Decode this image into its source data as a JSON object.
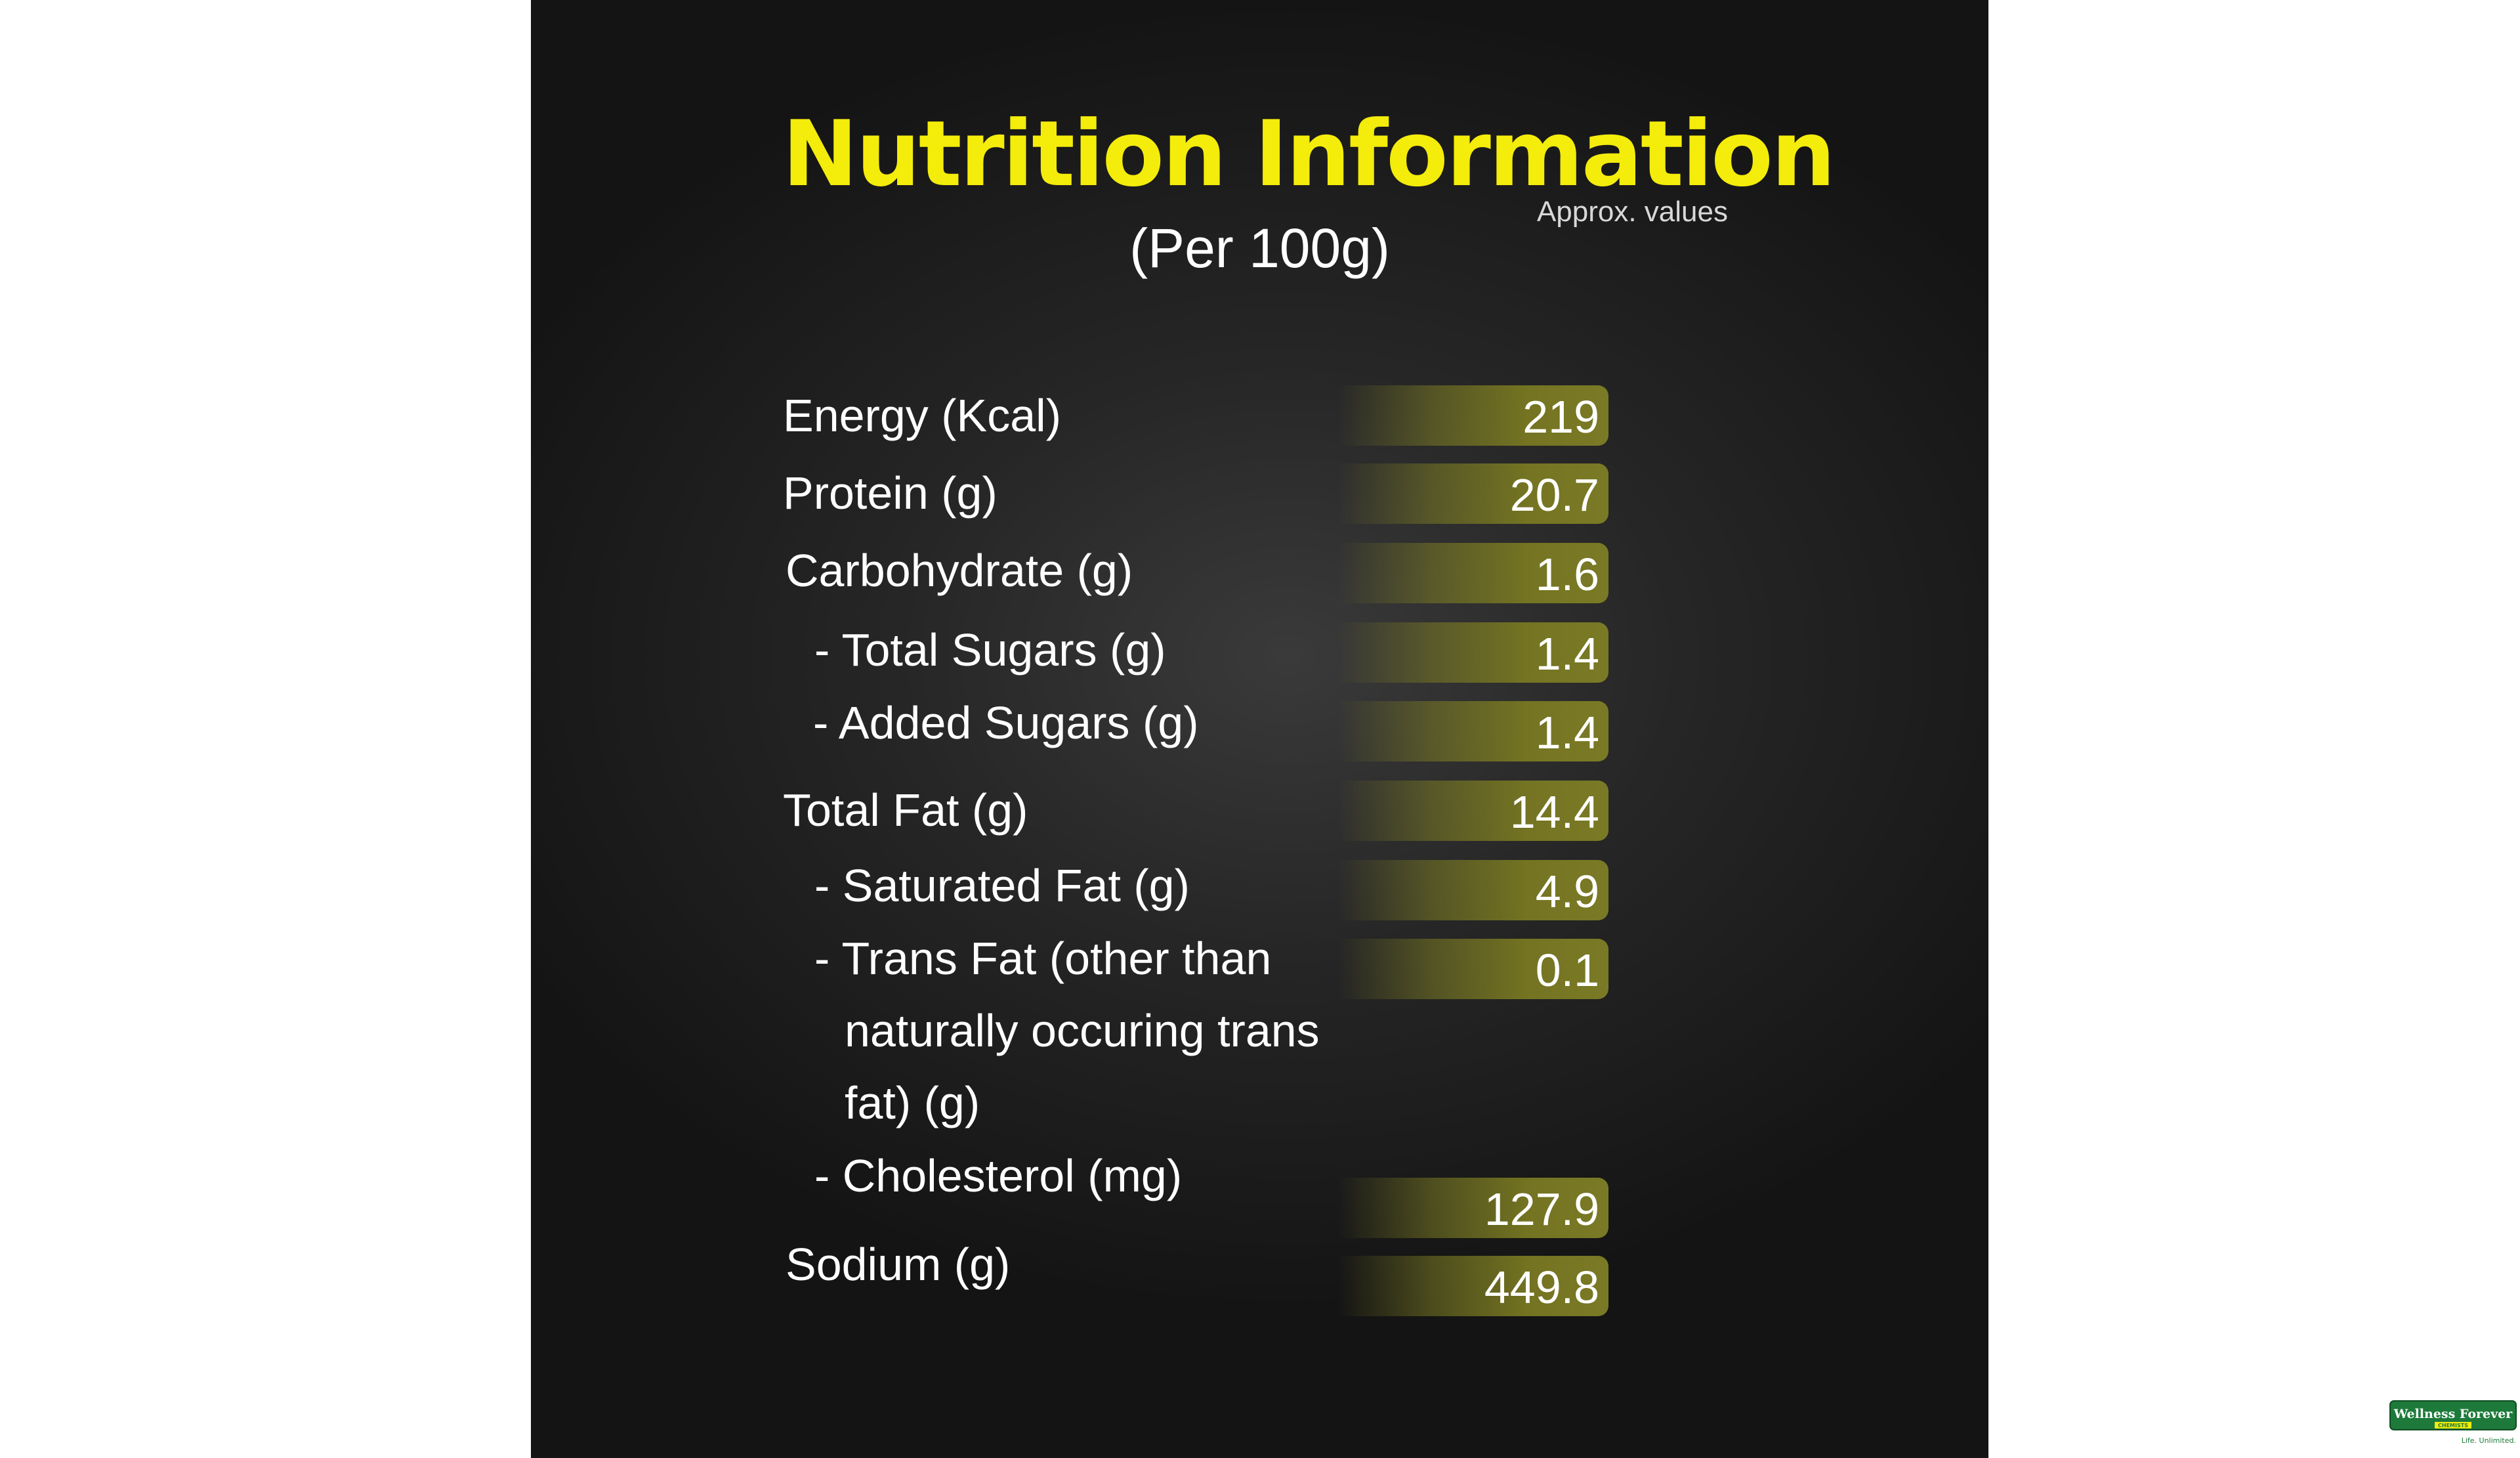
{
  "header": {
    "title": "Nutrition Information",
    "note": "Approx. values",
    "basis": "(Per 100g)"
  },
  "nutrients": [
    {
      "label": "Energy (Kcal)",
      "value": "219"
    },
    {
      "label": "Protein (g)",
      "value": "20.7"
    },
    {
      "label": "Carbohydrate (g)",
      "value": "1.6"
    },
    {
      "label": "- Total Sugars (g)",
      "value": "1.4"
    },
    {
      "label": "- Added Sugars (g)",
      "value": "1.4"
    },
    {
      "label": "Total Fat (g)",
      "value": "14.4"
    },
    {
      "label": "- Saturated Fat (g)",
      "value": "4.9"
    },
    {
      "label": "- Trans Fat (other than",
      "label_line2": "naturally occuring trans",
      "label_line3": "fat) (g)",
      "value": "0.1"
    },
    {
      "label": "- Cholesterol (mg)",
      "value": "127.9"
    },
    {
      "label": "Sodium (g)",
      "value": "449.8"
    }
  ],
  "brand": {
    "name": "Wellness Forever",
    "sub": "CHEMISTS",
    "tagline": "Life. Unlimited."
  },
  "colors": {
    "title": "#f4ec0a",
    "bar": "#7a7a26",
    "logo_green": "#1d7a3a"
  }
}
